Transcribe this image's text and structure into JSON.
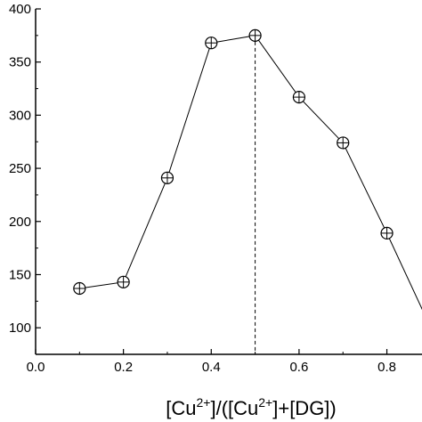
{
  "chart_data": {
    "type": "line",
    "title": "",
    "xlabel": "[Cu2+]/([Cu2+]+[DG])",
    "xlabel_parts": {
      "p1": "[Cu",
      "sup1": "2+",
      "p2": "]/([Cu",
      "sup2": "2+",
      "p3": "]+[DG])"
    },
    "ylabel": "",
    "xlim": [
      0.0,
      0.9
    ],
    "ylim": [
      75,
      400
    ],
    "x_ticks": [
      0.0,
      0.2,
      0.4,
      0.6,
      0.8
    ],
    "x_tick_labels": [
      "0.0",
      "0.2",
      "0.4",
      "0.6",
      "0.8"
    ],
    "y_ticks": [
      100,
      150,
      200,
      250,
      300,
      350,
      400
    ],
    "y_tick_labels": [
      "100",
      "150",
      "200",
      "250",
      "300",
      "350",
      "400"
    ],
    "grid": false,
    "marker": "circled-plus",
    "series": [
      {
        "x": [
          0.1,
          0.2,
          0.3,
          0.4,
          0.5,
          0.6,
          0.7,
          0.8,
          0.9
        ],
        "y": [
          137,
          143,
          241,
          368,
          375,
          317,
          274,
          189,
          100
        ]
      }
    ],
    "reference_line": {
      "x": 0.5,
      "style": "dashed"
    }
  }
}
